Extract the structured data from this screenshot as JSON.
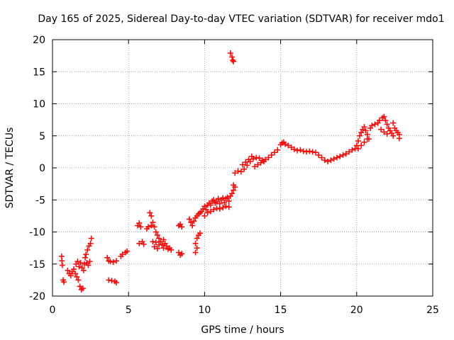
{
  "chart_data": {
    "type": "scatter",
    "title": "Day 165 of 2025, Sidereal Day-to-day VTEC variation (SDTVAR) for receiver mdo1",
    "xlabel": "GPS time / hours",
    "ylabel": "SDTVAR / TECUs",
    "xlim": [
      0,
      25
    ],
    "ylim": [
      -20,
      20
    ],
    "xticks": [
      0,
      5,
      10,
      15,
      20,
      25
    ],
    "yticks": [
      -20,
      -15,
      -10,
      -5,
      0,
      5,
      10,
      15,
      20
    ],
    "grid": true,
    "marker": "+",
    "color": "#ff0000",
    "series": [
      {
        "name": "SDTVAR",
        "points": [
          [
            0.6,
            -13.8
          ],
          [
            0.62,
            -14.5
          ],
          [
            0.65,
            -15.2
          ],
          [
            0.7,
            -17.5
          ],
          [
            0.75,
            -17.8
          ],
          [
            1.0,
            -16.0
          ],
          [
            1.1,
            -16.5
          ],
          [
            1.2,
            -16.8
          ],
          [
            1.3,
            -16.2
          ],
          [
            1.4,
            -15.8
          ],
          [
            1.5,
            -16.5
          ],
          [
            1.6,
            -17.0
          ],
          [
            1.7,
            -17.5
          ],
          [
            1.8,
            -18.5
          ],
          [
            1.9,
            -19.0
          ],
          [
            2.0,
            -18.8
          ],
          [
            2.05,
            -16.0
          ],
          [
            2.1,
            -15.0
          ],
          [
            2.15,
            -14.0
          ],
          [
            2.2,
            -13.5
          ],
          [
            2.3,
            -12.8
          ],
          [
            2.4,
            -12.2
          ],
          [
            2.5,
            -11.8
          ],
          [
            2.55,
            -11.0
          ],
          [
            1.55,
            -15.0
          ],
          [
            1.65,
            -14.6
          ],
          [
            1.75,
            -15.4
          ],
          [
            1.85,
            -14.8
          ],
          [
            1.95,
            -15.6
          ],
          [
            2.25,
            -14.8
          ],
          [
            2.35,
            -15.2
          ],
          [
            2.45,
            -14.6
          ],
          [
            3.6,
            -14.0
          ],
          [
            3.7,
            -14.5
          ],
          [
            3.8,
            -14.6
          ],
          [
            4.0,
            -14.7
          ],
          [
            4.2,
            -14.5
          ],
          [
            3.7,
            -17.5
          ],
          [
            3.9,
            -17.6
          ],
          [
            4.1,
            -17.7
          ],
          [
            4.2,
            -17.9
          ],
          [
            4.5,
            -13.8
          ],
          [
            4.6,
            -13.5
          ],
          [
            4.8,
            -13.2
          ],
          [
            4.9,
            -13.0
          ],
          [
            5.6,
            -9.0
          ],
          [
            5.7,
            -8.6
          ],
          [
            5.8,
            -9.2
          ],
          [
            5.7,
            -11.8
          ],
          [
            5.9,
            -11.5
          ],
          [
            6.0,
            -11.9
          ],
          [
            6.2,
            -9.5
          ],
          [
            6.3,
            -9.2
          ],
          [
            6.5,
            -9.0
          ],
          [
            6.4,
            -7.0
          ],
          [
            6.5,
            -7.5
          ],
          [
            6.6,
            -8.5
          ],
          [
            6.7,
            -9.2
          ],
          [
            6.8,
            -10.0
          ],
          [
            6.9,
            -10.5
          ],
          [
            7.0,
            -11.0
          ],
          [
            7.1,
            -11.5
          ],
          [
            7.2,
            -12.0
          ],
          [
            7.3,
            -12.5
          ],
          [
            6.6,
            -11.5
          ],
          [
            6.7,
            -12.3
          ],
          [
            6.8,
            -11.6
          ],
          [
            6.9,
            -12.6
          ],
          [
            7.0,
            -12.0
          ],
          [
            7.3,
            -11.2
          ],
          [
            7.4,
            -11.8
          ],
          [
            7.5,
            -12.2
          ],
          [
            7.6,
            -12.7
          ],
          [
            7.7,
            -12.5
          ],
          [
            7.8,
            -12.8
          ],
          [
            8.3,
            -9.0
          ],
          [
            8.4,
            -8.8
          ],
          [
            8.5,
            -9.2
          ],
          [
            8.3,
            -13.2
          ],
          [
            8.4,
            -13.6
          ],
          [
            8.5,
            -13.4
          ],
          [
            9.0,
            -8.0
          ],
          [
            9.1,
            -8.5
          ],
          [
            9.2,
            -9.0
          ],
          [
            9.3,
            -8.3
          ],
          [
            9.4,
            -7.8
          ],
          [
            9.5,
            -7.5
          ],
          [
            9.6,
            -7.2
          ],
          [
            9.7,
            -7.0
          ],
          [
            9.5,
            -11.0
          ],
          [
            9.6,
            -10.5
          ],
          [
            9.7,
            -10.2
          ],
          [
            9.4,
            -11.8
          ],
          [
            9.5,
            -12.5
          ],
          [
            9.4,
            -13.2
          ],
          [
            9.8,
            -6.8
          ],
          [
            9.9,
            -6.4
          ],
          [
            10.0,
            -6.0
          ],
          [
            10.1,
            -6.5
          ],
          [
            10.2,
            -5.8
          ],
          [
            10.3,
            -5.5
          ],
          [
            10.4,
            -5.8
          ],
          [
            10.5,
            -5.2
          ],
          [
            10.6,
            -5.0
          ],
          [
            10.7,
            -5.5
          ],
          [
            10.8,
            -5.3
          ],
          [
            10.9,
            -4.8
          ],
          [
            11.0,
            -5.6
          ],
          [
            11.1,
            -5.0
          ],
          [
            11.2,
            -4.7
          ],
          [
            11.3,
            -5.4
          ],
          [
            11.4,
            -4.8
          ],
          [
            11.5,
            -4.6
          ],
          [
            11.6,
            -5.2
          ],
          [
            11.7,
            -4.4
          ],
          [
            10.0,
            -7.5
          ],
          [
            10.2,
            -7.0
          ],
          [
            10.4,
            -6.8
          ],
          [
            10.6,
            -6.5
          ],
          [
            10.8,
            -6.3
          ],
          [
            11.0,
            -6.4
          ],
          [
            11.2,
            -6.2
          ],
          [
            11.4,
            -6.0
          ],
          [
            11.6,
            -6.1
          ],
          [
            11.8,
            -4.0
          ],
          [
            11.9,
            -3.5
          ],
          [
            12.0,
            -3.0
          ],
          [
            11.9,
            -2.7
          ],
          [
            11.7,
            17.9
          ],
          [
            11.8,
            17.3
          ],
          [
            11.85,
            16.8
          ],
          [
            11.9,
            16.6
          ],
          [
            12.0,
            -0.8
          ],
          [
            12.2,
            -0.5
          ],
          [
            12.4,
            -0.6
          ],
          [
            12.6,
            -0.2
          ],
          [
            12.8,
            0.4
          ],
          [
            13.0,
            1.0
          ],
          [
            13.2,
            1.4
          ],
          [
            13.4,
            1.6
          ],
          [
            13.6,
            1.5
          ],
          [
            13.8,
            1.2
          ],
          [
            14.0,
            1.3
          ],
          [
            14.2,
            1.6
          ],
          [
            14.4,
            2.0
          ],
          [
            14.6,
            2.4
          ],
          [
            14.8,
            2.8
          ],
          [
            12.5,
            0.5
          ],
          [
            12.7,
            0.9
          ],
          [
            12.9,
            1.3
          ],
          [
            13.1,
            1.8
          ],
          [
            13.3,
            0.2
          ],
          [
            13.5,
            0.5
          ],
          [
            13.7,
            0.8
          ],
          [
            13.9,
            1.0
          ],
          [
            15.0,
            3.6
          ],
          [
            15.1,
            3.9
          ],
          [
            15.2,
            4.0
          ],
          [
            15.3,
            3.7
          ],
          [
            15.5,
            3.5
          ],
          [
            15.7,
            3.2
          ],
          [
            15.9,
            2.9
          ],
          [
            16.1,
            2.7
          ],
          [
            16.3,
            2.8
          ],
          [
            16.5,
            2.6
          ],
          [
            16.7,
            2.5
          ],
          [
            16.9,
            2.6
          ],
          [
            17.1,
            2.5
          ],
          [
            17.3,
            2.4
          ],
          [
            17.5,
            2.0
          ],
          [
            17.7,
            1.6
          ],
          [
            17.9,
            1.2
          ],
          [
            18.1,
            1.0
          ],
          [
            18.3,
            1.2
          ],
          [
            18.5,
            1.4
          ],
          [
            18.7,
            1.6
          ],
          [
            18.9,
            1.8
          ],
          [
            19.1,
            2.0
          ],
          [
            19.3,
            2.2
          ],
          [
            19.5,
            2.5
          ],
          [
            19.7,
            2.8
          ],
          [
            19.9,
            3.0
          ],
          [
            20.0,
            3.5
          ],
          [
            20.1,
            4.2
          ],
          [
            20.2,
            5.0
          ],
          [
            20.3,
            5.5
          ],
          [
            20.4,
            6.0
          ],
          [
            20.5,
            6.4
          ],
          [
            20.6,
            5.8
          ],
          [
            20.7,
            5.2
          ],
          [
            20.8,
            4.5
          ],
          [
            20.1,
            3.0
          ],
          [
            20.3,
            3.5
          ],
          [
            20.5,
            4.0
          ],
          [
            20.7,
            4.5
          ],
          [
            20.9,
            6.2
          ],
          [
            21.0,
            6.6
          ],
          [
            21.2,
            6.8
          ],
          [
            21.4,
            7.0
          ],
          [
            21.5,
            7.4
          ],
          [
            21.7,
            7.8
          ],
          [
            21.8,
            8.0
          ],
          [
            21.9,
            7.4
          ],
          [
            22.0,
            6.8
          ],
          [
            22.1,
            6.2
          ],
          [
            22.2,
            5.8
          ],
          [
            22.3,
            5.4
          ],
          [
            22.4,
            5.0
          ],
          [
            21.6,
            6.0
          ],
          [
            21.8,
            5.6
          ],
          [
            22.0,
            5.3
          ],
          [
            22.4,
            7.0
          ],
          [
            22.5,
            6.2
          ],
          [
            22.6,
            5.8
          ],
          [
            22.7,
            5.5
          ],
          [
            22.8,
            5.2
          ],
          [
            22.8,
            4.6
          ]
        ]
      }
    ]
  }
}
